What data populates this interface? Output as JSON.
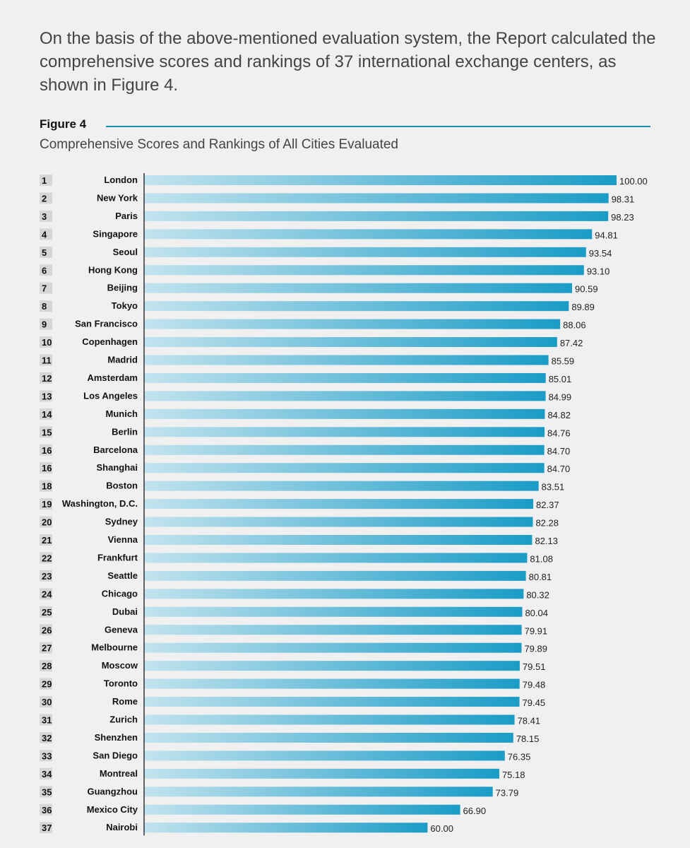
{
  "intro_text": "On the basis of the above-mentioned evaluation system, the Report calculated the comprehensive scores and rankings of 37 international exchange centers, as shown in Figure 4.",
  "figure": {
    "label": "Figure 4",
    "subtitle": "Comprehensive Scores and Rankings of All Cities Evaluated"
  },
  "chart_data": {
    "type": "bar",
    "orientation": "horizontal",
    "title": "Comprehensive Scores and Rankings of All Cities Evaluated",
    "categories": [
      "London",
      "New York",
      "Paris",
      "Singapore",
      "Seoul",
      "Hong Kong",
      "Beijing",
      "Tokyo",
      "San Francisco",
      "Copenhagen",
      "Madrid",
      "Amsterdam",
      "Los Angeles",
      "Munich",
      "Berlin",
      "Barcelona",
      "Shanghai",
      "Boston",
      "Washington, D.C.",
      "Sydney",
      "Vienna",
      "Frankfurt",
      "Seattle",
      "Chicago",
      "Dubai",
      "Geneva",
      "Melbourne",
      "Moscow",
      "Toronto",
      "Rome",
      "Zurich",
      "Shenzhen",
      "San Diego",
      "Montreal",
      "Guangzhou",
      "Mexico City",
      "Nairobi"
    ],
    "ranks": [
      "1",
      "2",
      "3",
      "4",
      "5",
      "6",
      "7",
      "8",
      "9",
      "10",
      "11",
      "12",
      "13",
      "14",
      "15",
      "16",
      "16",
      "18",
      "19",
      "20",
      "21",
      "22",
      "23",
      "24",
      "25",
      "26",
      "27",
      "28",
      "29",
      "30",
      "31",
      "32",
      "33",
      "34",
      "35",
      "36",
      "37"
    ],
    "values": [
      100.0,
      98.31,
      98.23,
      94.81,
      93.54,
      93.1,
      90.59,
      89.89,
      88.06,
      87.42,
      85.59,
      85.01,
      84.99,
      84.82,
      84.76,
      84.7,
      84.7,
      83.51,
      82.37,
      82.28,
      82.13,
      81.08,
      80.81,
      80.32,
      80.04,
      79.91,
      79.89,
      79.51,
      79.48,
      79.45,
      78.41,
      78.15,
      76.35,
      75.18,
      73.79,
      66.9,
      60.0
    ],
    "labels": [
      "100.00",
      "98.31",
      "98.23",
      "94.81",
      "93.54",
      "93.10",
      "90.59",
      "89.89",
      "88.06",
      "87.42",
      "85.59",
      "85.01",
      "84.99",
      "84.82",
      "84.76",
      "84.70",
      "84.70",
      "83.51",
      "82.37",
      "82.28",
      "82.13",
      "81.08",
      "80.81",
      "80.32",
      "80.04",
      "79.91",
      "79.89",
      "79.51",
      "79.48",
      "79.45",
      "78.41",
      "78.15",
      "76.35",
      "75.18",
      "73.79",
      "66.90",
      "60.00"
    ],
    "grid": false,
    "legend": "none",
    "colors": {
      "bar_start": "#c2e3ee",
      "bar_end": "#1a9cc7",
      "rank_box": "#d6d6d6",
      "axis": "#333333",
      "rule": "#1a8db4"
    }
  }
}
